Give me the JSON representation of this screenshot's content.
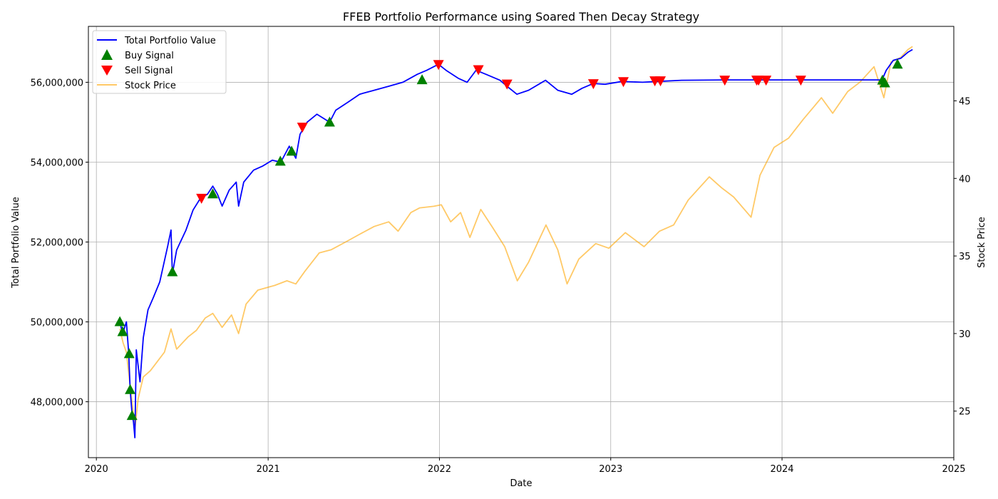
{
  "chart_data": {
    "type": "line",
    "title": "FFEB Portfolio Performance using Soared Then Decay Strategy",
    "xlabel": "Date",
    "ylabel": "Total Portfolio Value",
    "ylabel_right": "Stock Price",
    "xlim": [
      "2019-12-15",
      "2025-01-01"
    ],
    "ylim": [
      46600000,
      57400000
    ],
    "ylim_right": [
      22.0,
      49.8
    ],
    "grid": true,
    "legend_position": "top-left",
    "x_ticks": [
      "2020",
      "2021",
      "2022",
      "2023",
      "2024",
      "2025"
    ],
    "y_ticks": [
      "48,000,000",
      "50,000,000",
      "52,000,000",
      "54,000,000",
      "56,000,000"
    ],
    "y_ticks_right": [
      "25",
      "30",
      "35",
      "40",
      "45"
    ],
    "legend": [
      "Total Portfolio Value",
      "Buy Signal",
      "Sell Signal",
      "Stock Price"
    ],
    "colors": {
      "portfolio": "#0000ff",
      "buy": "#008000",
      "sell": "#ff0000",
      "stock": "#ffa500"
    },
    "series": [
      {
        "name": "Total Portfolio Value",
        "axis": "left",
        "points": [
          [
            "2020-02-20",
            50000000
          ],
          [
            "2020-02-26",
            49700000
          ],
          [
            "2020-03-05",
            50000000
          ],
          [
            "2020-03-10",
            49200000
          ],
          [
            "2020-03-13",
            48300000
          ],
          [
            "2020-03-17",
            47700000
          ],
          [
            "2020-03-20",
            47500000
          ],
          [
            "2020-03-23",
            47100000
          ],
          [
            "2020-03-26",
            49300000
          ],
          [
            "2020-04-03",
            48500000
          ],
          [
            "2020-04-10",
            49600000
          ],
          [
            "2020-04-20",
            50300000
          ],
          [
            "2020-05-01",
            50600000
          ],
          [
            "2020-05-15",
            51000000
          ],
          [
            "2020-06-01",
            51900000
          ],
          [
            "2020-06-08",
            52300000
          ],
          [
            "2020-06-11",
            51200000
          ],
          [
            "2020-06-20",
            51800000
          ],
          [
            "2020-07-10",
            52300000
          ],
          [
            "2020-07-25",
            52800000
          ],
          [
            "2020-08-10",
            53100000
          ],
          [
            "2020-08-25",
            53200000
          ],
          [
            "2020-09-05",
            53400000
          ],
          [
            "2020-09-15",
            53200000
          ],
          [
            "2020-09-25",
            52900000
          ],
          [
            "2020-10-10",
            53300000
          ],
          [
            "2020-10-25",
            53500000
          ],
          [
            "2020-10-30",
            52900000
          ],
          [
            "2020-11-10",
            53500000
          ],
          [
            "2020-12-01",
            53800000
          ],
          [
            "2020-12-20",
            53900000
          ],
          [
            "2021-01-10",
            54050000
          ],
          [
            "2021-01-28",
            54000000
          ],
          [
            "2021-02-15",
            54400000
          ],
          [
            "2021-03-01",
            54100000
          ],
          [
            "2021-03-10",
            54700000
          ],
          [
            "2021-03-25",
            55000000
          ],
          [
            "2021-04-15",
            55200000
          ],
          [
            "2021-05-12",
            55000000
          ],
          [
            "2021-05-25",
            55300000
          ],
          [
            "2021-06-20",
            55500000
          ],
          [
            "2021-07-15",
            55700000
          ],
          [
            "2021-08-15",
            55800000
          ],
          [
            "2021-09-15",
            55900000
          ],
          [
            "2021-10-15",
            56000000
          ],
          [
            "2021-11-15",
            56200000
          ],
          [
            "2021-12-05",
            56300000
          ],
          [
            "2021-12-30",
            56450000
          ],
          [
            "2022-01-15",
            56300000
          ],
          [
            "2022-02-10",
            56100000
          ],
          [
            "2022-03-01",
            56000000
          ],
          [
            "2022-03-20",
            56300000
          ],
          [
            "2022-04-10",
            56200000
          ],
          [
            "2022-05-10",
            56050000
          ],
          [
            "2022-05-25",
            55900000
          ],
          [
            "2022-06-15",
            55700000
          ],
          [
            "2022-07-10",
            55800000
          ],
          [
            "2022-08-15",
            56050000
          ],
          [
            "2022-09-10",
            55800000
          ],
          [
            "2022-10-10",
            55700000
          ],
          [
            "2022-11-01",
            55850000
          ],
          [
            "2022-11-25",
            55970000
          ],
          [
            "2022-12-20",
            55950000
          ],
          [
            "2023-01-25",
            56020000
          ],
          [
            "2023-03-10",
            56000000
          ],
          [
            "2023-04-10",
            56020000
          ],
          [
            "2023-06-01",
            56050000
          ],
          [
            "2023-09-01",
            56060000
          ],
          [
            "2023-11-15",
            56060000
          ],
          [
            "2024-02-10",
            56060000
          ],
          [
            "2024-05-15",
            56060000
          ],
          [
            "2024-08-01",
            56060000
          ],
          [
            "2024-08-10",
            56300000
          ],
          [
            "2024-08-25",
            56550000
          ],
          [
            "2024-09-10",
            56600000
          ],
          [
            "2024-09-25",
            56750000
          ],
          [
            "2024-10-05",
            56820000
          ]
        ]
      },
      {
        "name": "Stock Price",
        "axis": "right",
        "points": [
          [
            "2020-02-20",
            30.3
          ],
          [
            "2020-02-27",
            29.4
          ],
          [
            "2020-03-05",
            28.8
          ],
          [
            "2020-03-12",
            26.9
          ],
          [
            "2020-03-18",
            25.3
          ],
          [
            "2020-03-23",
            23.8
          ],
          [
            "2020-03-30",
            25.8
          ],
          [
            "2020-04-10",
            27.2
          ],
          [
            "2020-04-25",
            27.6
          ],
          [
            "2020-05-10",
            28.2
          ],
          [
            "2020-05-25",
            28.8
          ],
          [
            "2020-06-08",
            30.3
          ],
          [
            "2020-06-20",
            29.0
          ],
          [
            "2020-07-15",
            29.8
          ],
          [
            "2020-08-01",
            30.2
          ],
          [
            "2020-08-20",
            31.0
          ],
          [
            "2020-09-05",
            31.3
          ],
          [
            "2020-09-25",
            30.4
          ],
          [
            "2020-10-15",
            31.2
          ],
          [
            "2020-10-30",
            30.0
          ],
          [
            "2020-11-15",
            31.9
          ],
          [
            "2020-12-10",
            32.8
          ],
          [
            "2021-01-15",
            33.1
          ],
          [
            "2021-02-10",
            33.4
          ],
          [
            "2021-03-01",
            33.2
          ],
          [
            "2021-03-20",
            34.0
          ],
          [
            "2021-04-20",
            35.2
          ],
          [
            "2021-05-15",
            35.4
          ],
          [
            "2021-06-15",
            35.9
          ],
          [
            "2021-07-15",
            36.4
          ],
          [
            "2021-08-15",
            36.9
          ],
          [
            "2021-09-15",
            37.2
          ],
          [
            "2021-10-05",
            36.6
          ],
          [
            "2021-11-01",
            37.8
          ],
          [
            "2021-11-20",
            38.1
          ],
          [
            "2021-12-20",
            38.2
          ],
          [
            "2022-01-05",
            38.3
          ],
          [
            "2022-01-25",
            37.2
          ],
          [
            "2022-02-15",
            37.8
          ],
          [
            "2022-03-07",
            36.2
          ],
          [
            "2022-03-30",
            38.0
          ],
          [
            "2022-04-25",
            36.8
          ],
          [
            "2022-05-20",
            35.6
          ],
          [
            "2022-06-16",
            33.4
          ],
          [
            "2022-07-10",
            34.6
          ],
          [
            "2022-08-16",
            37.0
          ],
          [
            "2022-09-10",
            35.4
          ],
          [
            "2022-09-30",
            33.2
          ],
          [
            "2022-10-25",
            34.8
          ],
          [
            "2022-11-30",
            35.8
          ],
          [
            "2022-12-28",
            35.5
          ],
          [
            "2023-02-01",
            36.5
          ],
          [
            "2023-03-13",
            35.6
          ],
          [
            "2023-04-15",
            36.6
          ],
          [
            "2023-05-15",
            37.0
          ],
          [
            "2023-06-15",
            38.6
          ],
          [
            "2023-07-30",
            40.1
          ],
          [
            "2023-08-25",
            39.4
          ],
          [
            "2023-09-20",
            38.8
          ],
          [
            "2023-10-27",
            37.5
          ],
          [
            "2023-11-15",
            40.2
          ],
          [
            "2023-12-15",
            42.0
          ],
          [
            "2024-01-15",
            42.6
          ],
          [
            "2024-02-15",
            43.8
          ],
          [
            "2024-03-25",
            45.2
          ],
          [
            "2024-04-18",
            44.2
          ],
          [
            "2024-05-20",
            45.6
          ],
          [
            "2024-06-15",
            46.2
          ],
          [
            "2024-07-15",
            47.2
          ],
          [
            "2024-08-05",
            45.2
          ],
          [
            "2024-08-20",
            47.5
          ],
          [
            "2024-09-10",
            47.8
          ],
          [
            "2024-09-25",
            48.3
          ],
          [
            "2024-10-05",
            48.5
          ]
        ]
      }
    ],
    "buy_signals": [
      [
        "2020-02-20",
        50000000
      ],
      [
        "2020-02-26",
        49750000
      ],
      [
        "2020-03-11",
        49200000
      ],
      [
        "2020-03-13",
        48300000
      ],
      [
        "2020-03-17",
        47650000
      ],
      [
        "2020-06-11",
        51250000
      ],
      [
        "2020-09-05",
        53200000
      ],
      [
        "2021-01-27",
        54020000
      ],
      [
        "2021-02-20",
        54270000
      ],
      [
        "2021-05-12",
        55000000
      ],
      [
        "2021-11-25",
        56060000
      ],
      [
        "2024-08-02",
        56050000
      ],
      [
        "2024-08-07",
        55980000
      ],
      [
        "2024-09-03",
        56450000
      ]
    ],
    "sell_signals": [
      [
        "2020-08-12",
        53100000
      ],
      [
        "2021-03-15",
        54880000
      ],
      [
        "2021-12-30",
        56450000
      ],
      [
        "2022-03-25",
        56320000
      ],
      [
        "2022-05-25",
        55960000
      ],
      [
        "2022-11-25",
        55970000
      ],
      [
        "2023-01-28",
        56020000
      ],
      [
        "2023-04-05",
        56040000
      ],
      [
        "2023-04-17",
        56040000
      ],
      [
        "2023-09-01",
        56060000
      ],
      [
        "2023-11-08",
        56060000
      ],
      [
        "2023-11-12",
        56060000
      ],
      [
        "2023-11-28",
        56060000
      ],
      [
        "2024-02-10",
        56060000
      ]
    ]
  }
}
